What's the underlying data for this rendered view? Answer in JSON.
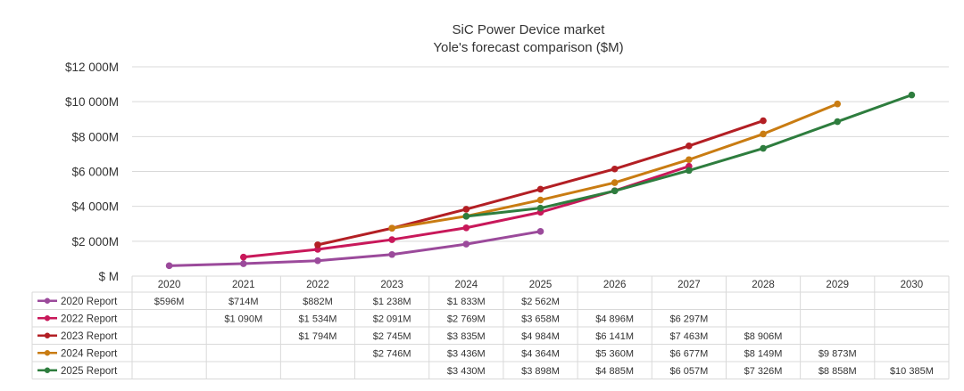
{
  "chart_data": {
    "type": "line",
    "title": [
      "SiC Power Device market",
      "Yole's forecast comparison ($M)"
    ],
    "categories": [
      "2020",
      "2021",
      "2022",
      "2023",
      "2024",
      "2025",
      "2026",
      "2027",
      "2028",
      "2029",
      "2030"
    ],
    "y_ticks": [
      "$ M",
      "$2 000M",
      "$4 000M",
      "$6 000M",
      "$8 000M",
      "$10 000M",
      "$12 000M"
    ],
    "ylim": [
      0,
      12000
    ],
    "grid": true,
    "legend": "table-below",
    "series": [
      {
        "name": "2020 Report",
        "color": "#9b4a9b",
        "values": [
          596,
          714,
          882,
          1238,
          1833,
          2562,
          null,
          null,
          null,
          null,
          null
        ],
        "labels": [
          "$596M",
          "$714M",
          "$882M",
          "$1 238M",
          "$1 833M",
          "$2 562M",
          "",
          "",
          "",
          "",
          ""
        ]
      },
      {
        "name": "2022 Report",
        "color": "#c8185a",
        "values": [
          null,
          1090,
          1534,
          2091,
          2769,
          3658,
          4896,
          6297,
          null,
          null,
          null
        ],
        "labels": [
          "",
          "$1 090M",
          "$1 534M",
          "$2 091M",
          "$2 769M",
          "$3 658M",
          "$4 896M",
          "$6 297M",
          "",
          "",
          ""
        ]
      },
      {
        "name": "2023 Report",
        "color": "#b31f24",
        "values": [
          null,
          null,
          1794,
          2745,
          3835,
          4984,
          6141,
          7463,
          8906,
          null,
          null
        ],
        "labels": [
          "",
          "",
          "$1 794M",
          "$2 745M",
          "$3 835M",
          "$4 984M",
          "$6 141M",
          "$7 463M",
          "$8 906M",
          "",
          ""
        ]
      },
      {
        "name": "2024 Report",
        "color": "#c97c12",
        "values": [
          null,
          null,
          null,
          2746,
          3436,
          4364,
          5360,
          6677,
          8149,
          9873,
          null
        ],
        "labels": [
          "",
          "",
          "",
          "$2 746M",
          "$3 436M",
          "$4 364M",
          "$5 360M",
          "$6 677M",
          "$8 149M",
          "$9 873M",
          ""
        ]
      },
      {
        "name": "2025 Report",
        "color": "#2e7d3e",
        "values": [
          null,
          null,
          null,
          null,
          3430,
          3898,
          4885,
          6057,
          7326,
          8858,
          10385
        ],
        "labels": [
          "",
          "",
          "",
          "",
          "$3 430M",
          "$3 898M",
          "$4 885M",
          "$6 057M",
          "$7 326M",
          "$8 858M",
          "$10 385M"
        ]
      }
    ]
  }
}
